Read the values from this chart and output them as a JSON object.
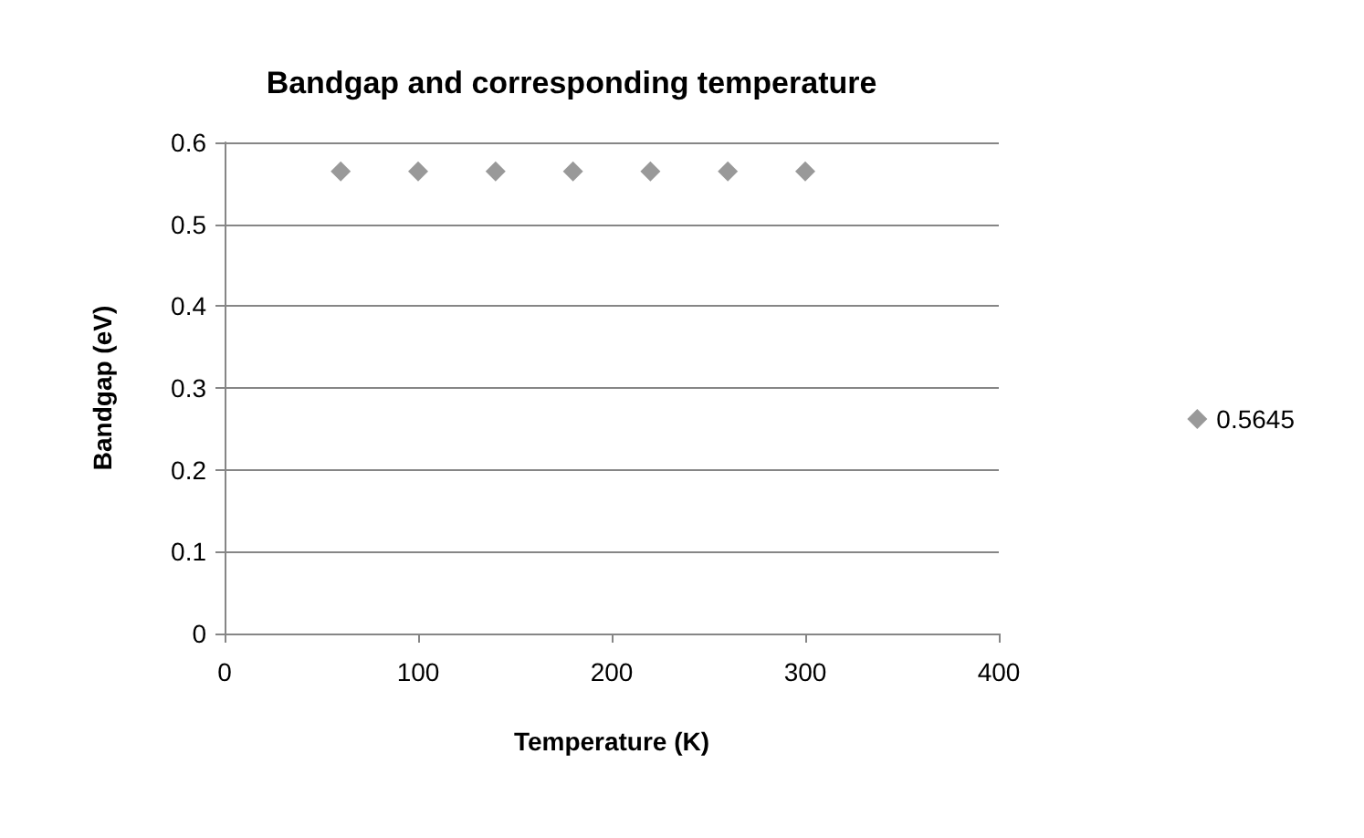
{
  "chart_data": {
    "type": "scatter",
    "title": "Bandgap and corresponding temperature",
    "xlabel": "Temperature (K)",
    "ylabel": "Bandgap (eV)",
    "x": [
      60,
      100,
      140,
      180,
      220,
      260,
      300
    ],
    "series": [
      {
        "name": "0.5645",
        "color": "#808080",
        "values": [
          0.5645,
          0.5645,
          0.5645,
          0.5645,
          0.5645,
          0.5645,
          0.5645
        ]
      }
    ],
    "xlim": [
      0,
      400
    ],
    "xticks": [
      0,
      100,
      200,
      300,
      400
    ],
    "ylim": [
      0,
      0.6
    ],
    "yticks": [
      0,
      0.1,
      0.2,
      0.3,
      0.4,
      0.5,
      0.6
    ],
    "grid": "y",
    "legend": "right",
    "marker": "diamond"
  }
}
